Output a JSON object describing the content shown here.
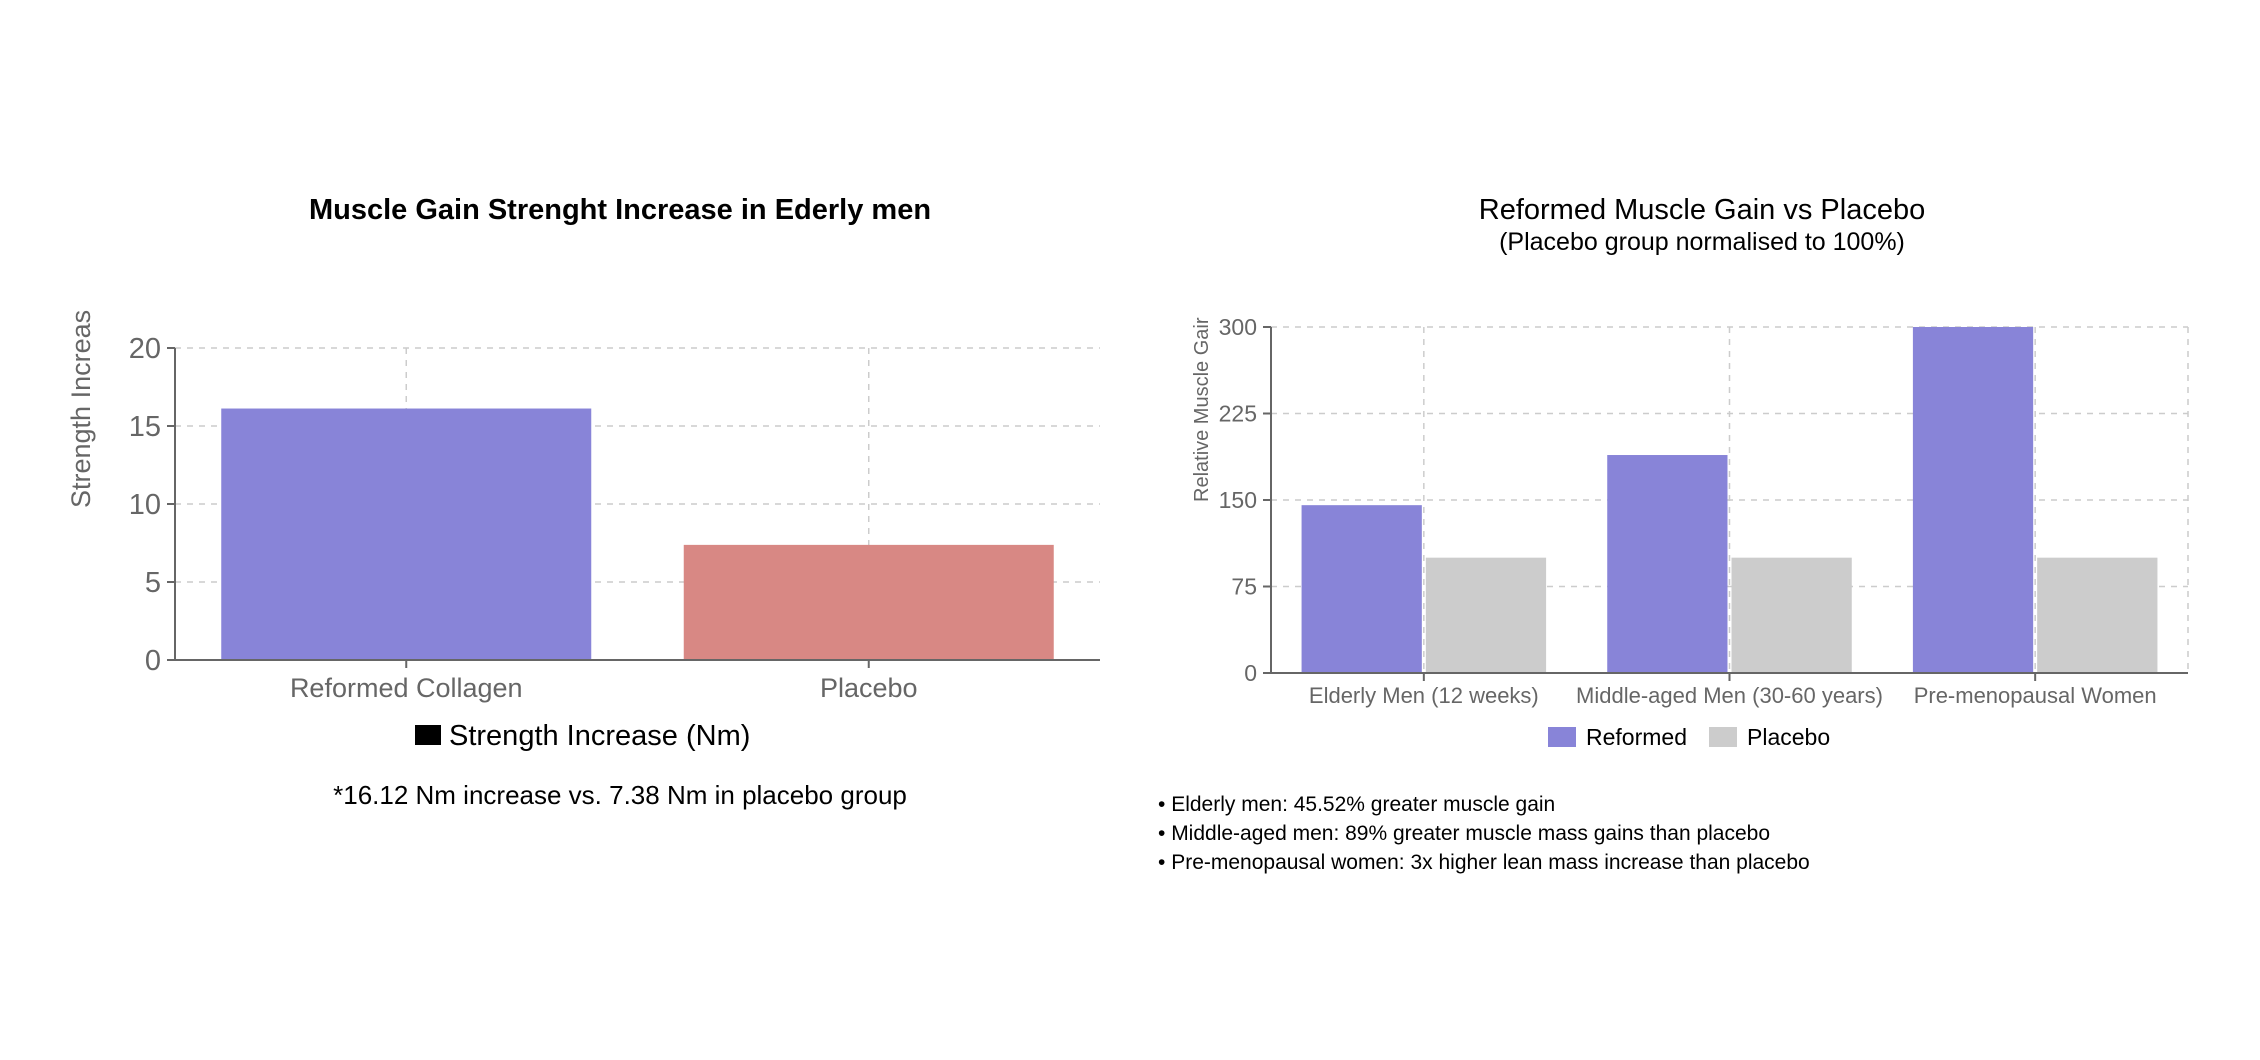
{
  "left": {
    "title": "Muscle Gain Strenght Increase in Ederly men",
    "note": "*16.12 Nm increase vs. 7.38 Nm in placebo group",
    "chart_data": {
      "type": "bar",
      "title": "Muscle Gain Strenght Increase in Ederly men",
      "xlabel": "",
      "ylabel": "Strength Increas",
      "categories": [
        "Reformed Collagen",
        "Placebo"
      ],
      "series": [
        {
          "name": "Strength Increase (Nm)",
          "values": [
            16.12,
            7.38
          ],
          "colors": [
            "#8884d8",
            "#d88884"
          ]
        }
      ],
      "ylim": [
        0,
        20
      ],
      "yticks": [
        "0",
        "5",
        "10",
        "15",
        "20"
      ],
      "grid": true,
      "legend": "bottom-center",
      "legend_swatch_color": "#000000"
    }
  },
  "right": {
    "title": "Reformed Muscle Gain vs Placebo",
    "subtitle": "(Placebo group normalised to 100%)",
    "notes": [
      "Elderly men: 45.52% greater muscle gain",
      "Middle-aged men: 89% greater muscle mass gains than placebo",
      "Pre-menopausal women: 3x higher lean mass increase than placebo"
    ],
    "chart_data": {
      "type": "bar",
      "title": "Reformed Muscle Gain vs Placebo",
      "subtitle": "(Placebo group normalised to 100%)",
      "xlabel": "",
      "ylabel": "Relative Muscle Gair",
      "categories": [
        "Elderly Men (12 weeks)",
        "Middle-aged Men (30-60 years)",
        "Pre-menopausal Women"
      ],
      "series": [
        {
          "name": "Reformed",
          "values": [
            145.52,
            189,
            300
          ],
          "color": "#8884d8"
        },
        {
          "name": "Placebo",
          "values": [
            100,
            100,
            100
          ],
          "color": "#cccccc"
        }
      ],
      "ylim": [
        0,
        300
      ],
      "yticks": [
        "0",
        "75",
        "150",
        "225",
        "300"
      ],
      "grid": true,
      "legend": "bottom-center"
    }
  }
}
